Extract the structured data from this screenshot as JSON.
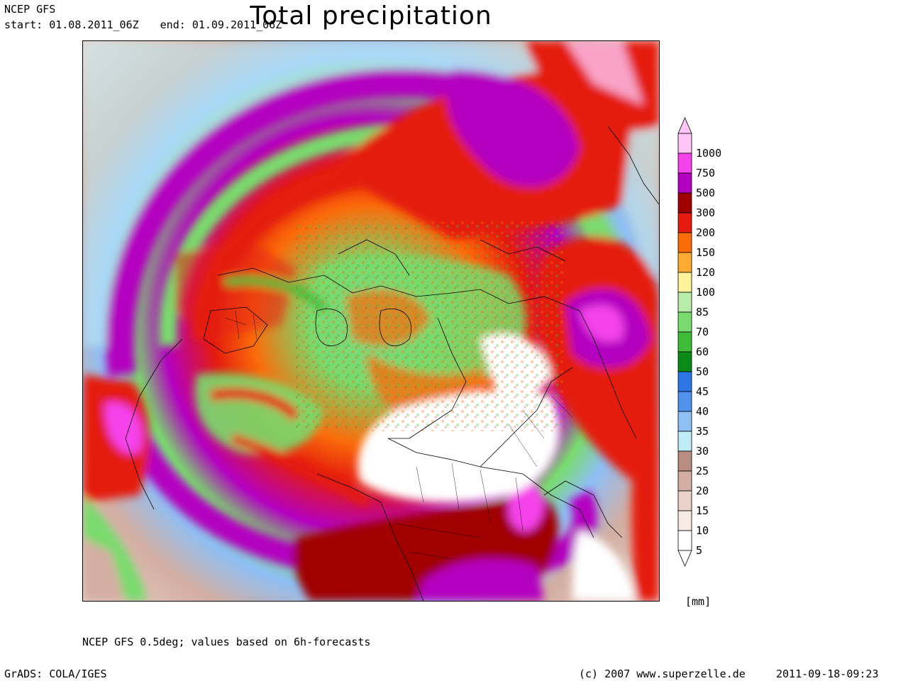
{
  "header": {
    "model": "NCEP GFS",
    "start": "start: 01.08.2011_06Z",
    "end": "end: 01.09.2011_06Z"
  },
  "title": "Total precipitation",
  "colorbar": {
    "unit": "[mm]",
    "levels": [
      {
        "value": "1000",
        "color": "#ffc6f7"
      },
      {
        "value": "750",
        "color": "#f542eb"
      },
      {
        "value": "500",
        "color": "#b400c0"
      },
      {
        "value": "300",
        "color": "#a00000"
      },
      {
        "value": "200",
        "color": "#e41b0e"
      },
      {
        "value": "150",
        "color": "#fb6b0a"
      },
      {
        "value": "120",
        "color": "#ffaa33"
      },
      {
        "value": "100",
        "color": "#fff29a"
      },
      {
        "value": "85",
        "color": "#b9ecaa"
      },
      {
        "value": "70",
        "color": "#79db6d"
      },
      {
        "value": "60",
        "color": "#3fbd3a"
      },
      {
        "value": "50",
        "color": "#0c8a18"
      },
      {
        "value": "45",
        "color": "#2e75e6"
      },
      {
        "value": "40",
        "color": "#5292ee"
      },
      {
        "value": "35",
        "color": "#8ebff5"
      },
      {
        "value": "30",
        "color": "#c0ecf7"
      },
      {
        "value": "25",
        "color": "#b98d82"
      },
      {
        "value": "20",
        "color": "#d3aea2"
      },
      {
        "value": "15",
        "color": "#ead2c8"
      },
      {
        "value": "10",
        "color": "#f6eae4"
      },
      {
        "value": "5",
        "color": "#ffffff"
      }
    ]
  },
  "note": "NCEP GFS 0.5deg; values based on 6h-forecasts",
  "footer": {
    "software": "GrADS: COLA/IGES",
    "copyright": "(c) 2007 www.superzelle.de",
    "timestamp": "2011-09-18-09:23"
  }
}
